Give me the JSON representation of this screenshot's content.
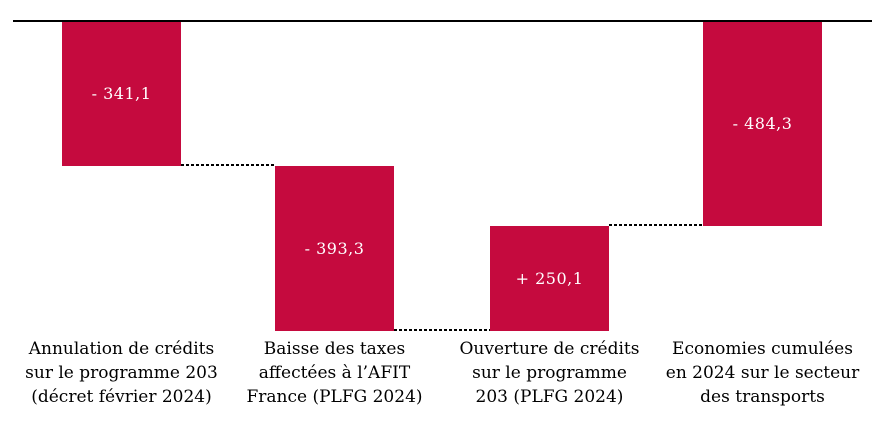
{
  "chart_data": {
    "type": "waterfall",
    "title": "",
    "orientation": "vertical",
    "baseline_value": 0,
    "ylim": [
      -734.4,
      0
    ],
    "grid": false,
    "legend": false,
    "bar_color": "#C50A3E",
    "value_text_color": "#FFFFFF",
    "label_text_color": "#000000",
    "connector_style": "dashed",
    "categories": [
      "Annulation de crédits\nsur le programme 203\n(décret février 2024)",
      "Baisse des taxes\naffectées à l’AFIT\nFrance (PLFG 2024)",
      "Ouverture de crédits\nsur le programme\n203 (PLFG 2024)",
      "Economies cumulées\nen 2024 sur le secteur\ndes transports"
    ],
    "bars": [
      {
        "value": -341.1,
        "display": "- 341,1",
        "is_total": false
      },
      {
        "value": -393.3,
        "display": "- 393,3",
        "is_total": false
      },
      {
        "value": 250.1,
        "display": "+ 250,1",
        "is_total": false
      },
      {
        "value": -484.3,
        "display": "- 484,3",
        "is_total": true
      }
    ]
  }
}
